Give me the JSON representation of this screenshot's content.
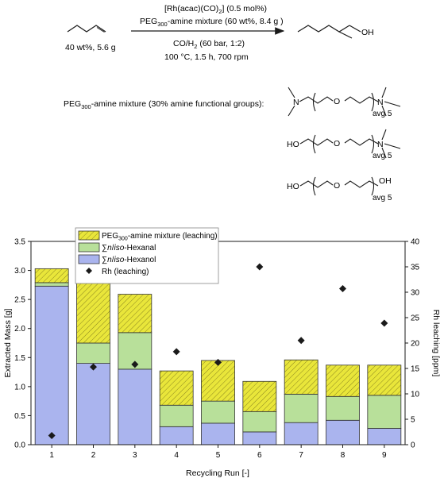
{
  "scheme": {
    "reactant_label": "40 wt%, 5.6 g",
    "above_arrow_1": "[Rh(acac)(CO)2] (0.5 mol%)",
    "above_arrow_2": "PEG300-amine mixture (60 wt%, 8.4 g )",
    "below_arrow_1": "CO/H2 (60 bar, 1:2)",
    "below_arrow_2": "100 °C, 1.5 h, 700 rpm",
    "product_label": "OH",
    "mixture_caption": "PEG300-amine mixture (30% amine functional groups):",
    "struct1": {
      "o": "O",
      "n_left": "N",
      "n_right": "N",
      "sub": "avg 5"
    },
    "struct2": {
      "ho": "HO",
      "o": "O",
      "n": "N",
      "sub": "avg 5"
    },
    "struct3": {
      "ho": "HO",
      "o": "O",
      "oh": "OH",
      "sub": "avg 5"
    }
  },
  "chart_data": {
    "type": "bar",
    "stacked": true,
    "xlabel": "Recycling Run [-]",
    "ylabel": "Extracted Mass [g]",
    "y2label": "Rh leaching [ppm]",
    "categories": [
      "1",
      "2",
      "3",
      "4",
      "5",
      "6",
      "7",
      "8",
      "9"
    ],
    "ylim": [
      0,
      3.5
    ],
    "y2lim": [
      0,
      40
    ],
    "yticks": [
      "0.0",
      "0.5",
      "1.0",
      "1.5",
      "2.0",
      "2.5",
      "3.0",
      "3.5"
    ],
    "y2ticks": [
      "0",
      "5",
      "10",
      "15",
      "20",
      "25",
      "30",
      "35",
      "40"
    ],
    "series": [
      {
        "name": "∑n/iso-Hexanol",
        "color": "#aab4ee",
        "values": [
          2.73,
          1.4,
          1.3,
          0.31,
          0.37,
          0.22,
          0.38,
          0.42,
          0.28
        ]
      },
      {
        "name": "∑n/iso-Hexanal",
        "color": "#b8e09a",
        "values": [
          0.06,
          0.35,
          0.63,
          0.37,
          0.38,
          0.35,
          0.49,
          0.41,
          0.57
        ]
      },
      {
        "name": "PEG300-amine mixture (leaching)",
        "color": "#e9e63a",
        "values": [
          0.24,
          1.03,
          0.66,
          0.59,
          0.7,
          0.52,
          0.59,
          0.54,
          0.52
        ]
      }
    ],
    "scatter": {
      "name": "Rh (leaching)",
      "axis": "right",
      "values": [
        1.8,
        15.3,
        15.8,
        18.3,
        16.2,
        35.0,
        20.5,
        30.7,
        23.9
      ]
    },
    "legend_position": "top-center",
    "grid": false
  }
}
